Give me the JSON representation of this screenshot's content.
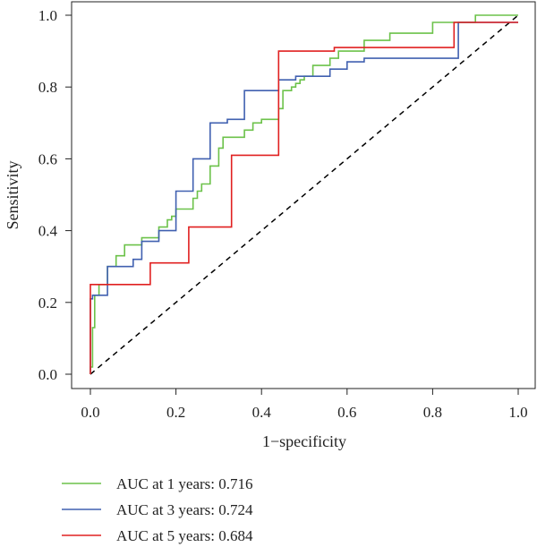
{
  "chart_data": {
    "type": "line",
    "title": "",
    "xlabel": "1−specificity",
    "ylabel": "Sensitivity",
    "xlim": [
      0,
      1
    ],
    "ylim": [
      0,
      1
    ],
    "x_ticks": [
      "0.0",
      "0.2",
      "0.4",
      "0.6",
      "0.8",
      "1.0"
    ],
    "y_ticks": [
      "0.0",
      "0.2",
      "0.4",
      "0.6",
      "0.8",
      "1.0"
    ],
    "grid": false,
    "legend_position": "bottom",
    "reference_line": {
      "style": "dashed",
      "from": [
        0,
        0
      ],
      "to": [
        1,
        1
      ],
      "color": "#000000"
    },
    "series": [
      {
        "name": "AUC at 1 years: 0.716",
        "color": "#6cc24a",
        "x": [
          0.0,
          0.0,
          0.005,
          0.005,
          0.01,
          0.01,
          0.02,
          0.02,
          0.04,
          0.04,
          0.06,
          0.06,
          0.08,
          0.08,
          0.12,
          0.12,
          0.16,
          0.16,
          0.18,
          0.18,
          0.19,
          0.19,
          0.2,
          0.2,
          0.24,
          0.24,
          0.25,
          0.25,
          0.26,
          0.26,
          0.28,
          0.28,
          0.3,
          0.3,
          0.31,
          0.31,
          0.36,
          0.36,
          0.38,
          0.38,
          0.4,
          0.4,
          0.44,
          0.44,
          0.45,
          0.45,
          0.47,
          0.47,
          0.48,
          0.48,
          0.49,
          0.49,
          0.5,
          0.5,
          0.51,
          0.51,
          0.52,
          0.52,
          0.56,
          0.56,
          0.58,
          0.58,
          0.64,
          0.64,
          0.7,
          0.7,
          0.8,
          0.8,
          0.9,
          0.9,
          1.0
        ],
        "y": [
          0.0,
          0.02,
          0.02,
          0.13,
          0.13,
          0.22,
          0.22,
          0.25,
          0.25,
          0.3,
          0.3,
          0.33,
          0.33,
          0.36,
          0.36,
          0.38,
          0.38,
          0.41,
          0.41,
          0.43,
          0.43,
          0.44,
          0.44,
          0.46,
          0.46,
          0.49,
          0.49,
          0.51,
          0.51,
          0.53,
          0.53,
          0.58,
          0.58,
          0.63,
          0.63,
          0.66,
          0.66,
          0.68,
          0.68,
          0.7,
          0.7,
          0.71,
          0.71,
          0.74,
          0.74,
          0.79,
          0.79,
          0.8,
          0.8,
          0.81,
          0.81,
          0.82,
          0.82,
          0.83,
          0.83,
          0.83,
          0.83,
          0.86,
          0.86,
          0.88,
          0.88,
          0.9,
          0.9,
          0.93,
          0.93,
          0.95,
          0.95,
          0.98,
          0.98,
          1.0,
          1.0
        ]
      },
      {
        "name": "AUC at 3 years: 0.724",
        "color": "#4060b0",
        "x": [
          0.0,
          0.0,
          0.005,
          0.005,
          0.04,
          0.04,
          0.1,
          0.1,
          0.12,
          0.12,
          0.16,
          0.16,
          0.2,
          0.2,
          0.24,
          0.24,
          0.28,
          0.28,
          0.32,
          0.32,
          0.36,
          0.36,
          0.44,
          0.44,
          0.48,
          0.48,
          0.52,
          0.52,
          0.56,
          0.56,
          0.6,
          0.6,
          0.64,
          0.64,
          0.86,
          0.86,
          1.0
        ],
        "y": [
          0.0,
          0.21,
          0.21,
          0.22,
          0.22,
          0.3,
          0.3,
          0.32,
          0.32,
          0.37,
          0.37,
          0.4,
          0.4,
          0.51,
          0.51,
          0.6,
          0.6,
          0.7,
          0.7,
          0.71,
          0.71,
          0.79,
          0.79,
          0.82,
          0.82,
          0.83,
          0.83,
          0.83,
          0.83,
          0.85,
          0.85,
          0.87,
          0.87,
          0.88,
          0.88,
          0.98,
          0.98
        ]
      },
      {
        "name": "AUC at 5 years: 0.684",
        "color": "#e02020",
        "x": [
          0.0,
          0.0,
          0.14,
          0.14,
          0.23,
          0.23,
          0.33,
          0.33,
          0.44,
          0.44,
          0.57,
          0.57,
          0.85,
          0.85,
          1.0
        ],
        "y": [
          0.0,
          0.25,
          0.25,
          0.31,
          0.31,
          0.41,
          0.41,
          0.61,
          0.61,
          0.9,
          0.9,
          0.91,
          0.91,
          0.98,
          0.98
        ]
      }
    ]
  }
}
